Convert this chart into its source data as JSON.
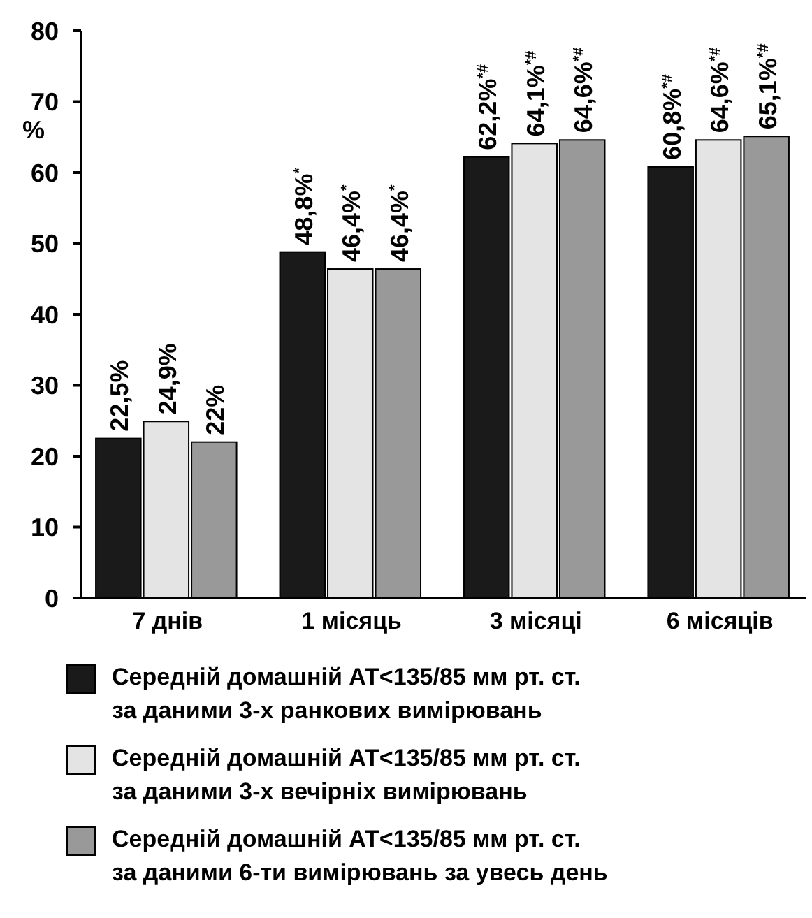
{
  "chart_data": {
    "type": "bar",
    "categories": [
      "7 днів",
      "1 місяць",
      "3 місяці",
      "6 місяців"
    ],
    "ylabel": "%",
    "ylim": [
      0,
      80
    ],
    "yticks": [
      0,
      10,
      20,
      30,
      40,
      50,
      60,
      70,
      80
    ],
    "grid": false,
    "legend": "bottom",
    "series": [
      {
        "name": "Середній домашній АТ<135/85 мм рт. ст. за даними 3-х ранкових вимірювань",
        "color": "#1a1a1a",
        "values": [
          22.5,
          48.8,
          62.2,
          60.8
        ],
        "value_labels": [
          "22,5%",
          "48,8%$^{*}$",
          "62,2%$^{*#}$",
          "60,8%$^{*#}$"
        ]
      },
      {
        "name": "Середній домашній АТ<135/85 мм рт. ст. за даними 3-х вечірніх вимірювань",
        "color": "#e4e4e4",
        "values": [
          24.9,
          46.4,
          64.1,
          64.6
        ],
        "value_labels": [
          "24,9%",
          "46,4%$^{*}$",
          "64,1%$^{*#}$",
          "64,6%$^{*#}$"
        ]
      },
      {
        "name": "Середній домашній АТ<135/85 мм рт. ст. за даними 6-ти вимірювань за увесь день",
        "color": "#999999",
        "values": [
          22,
          46.4,
          64.6,
          65.1
        ],
        "value_labels": [
          "22%",
          "46,4%$^{*}$",
          "64,6%$^{*#}$",
          "65,1%$^{*#}$"
        ]
      }
    ]
  }
}
